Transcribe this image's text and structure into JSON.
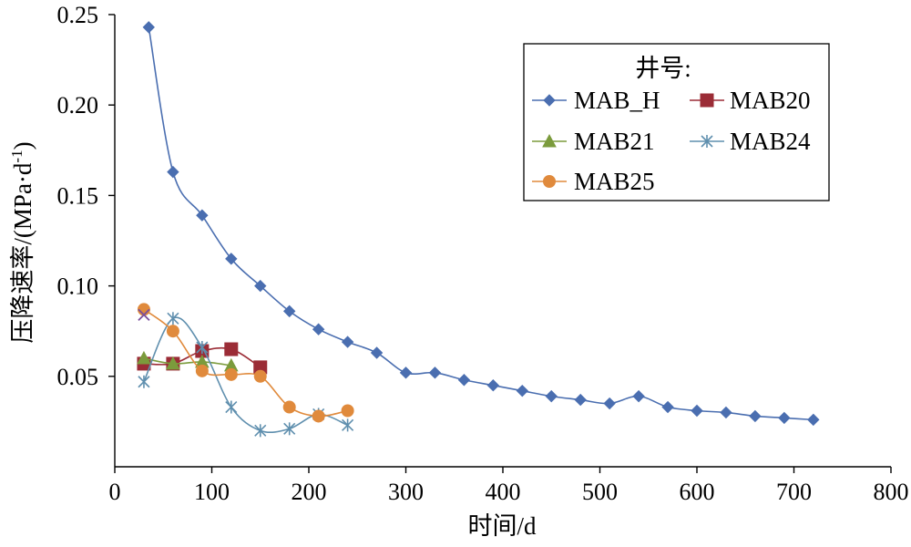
{
  "chart_data": {
    "type": "line",
    "title": "",
    "xlabel": "时间/d",
    "ylabel_main": "压降速率/(MPa·d",
    "ylabel_sup": "-1",
    "ylabel_tail": ")",
    "xlim": [
      0,
      800
    ],
    "ylim": [
      0,
      0.25
    ],
    "x_ticks": [
      0,
      100,
      200,
      300,
      400,
      500,
      600,
      700,
      800
    ],
    "x_tick_labels": [
      "0",
      "100",
      "200",
      "300",
      "400",
      "500",
      "600",
      "700",
      "800"
    ],
    "y_ticks": [
      0.05,
      0.1,
      0.15,
      0.2,
      0.25
    ],
    "y_tick_labels": [
      "0.05",
      "0.10",
      "0.15",
      "0.20",
      "0.25"
    ],
    "grid": false,
    "legend": {
      "title": "井号:",
      "position": "top-right"
    },
    "series": [
      {
        "name": "MAB_H",
        "marker": "diamond",
        "color": "#4a6eb0",
        "x": [
          35,
          60,
          90,
          120,
          150,
          180,
          210,
          240,
          270,
          300,
          330,
          360,
          390,
          420,
          450,
          480,
          510,
          540,
          570,
          600,
          630,
          660,
          690,
          720
        ],
        "y": [
          0.243,
          0.163,
          0.139,
          0.115,
          0.1,
          0.086,
          0.076,
          0.069,
          0.063,
          0.052,
          0.052,
          0.048,
          0.045,
          0.042,
          0.039,
          0.037,
          0.035,
          0.039,
          0.033,
          0.031,
          0.03,
          0.028,
          0.027,
          0.026
        ]
      },
      {
        "name": "MAB20",
        "marker": "square",
        "color": "#9b2c36",
        "x": [
          30,
          60,
          90,
          120,
          150
        ],
        "y": [
          0.057,
          0.057,
          0.064,
          0.065,
          0.055
        ]
      },
      {
        "name": "MAB21",
        "marker": "triangle",
        "color": "#7b9b3c",
        "x": [
          30,
          60,
          90,
          120
        ],
        "y": [
          0.06,
          0.057,
          0.058,
          0.056
        ]
      },
      {
        "name": "MAB24",
        "marker": "star",
        "color": "#5f8fae",
        "x": [
          30,
          60,
          90,
          120,
          150,
          180,
          210,
          240
        ],
        "y": [
          0.047,
          0.082,
          0.066,
          0.033,
          0.02,
          0.021,
          0.029,
          0.023
        ]
      },
      {
        "name": "MAB25",
        "marker": "circle",
        "color": "#e08a3c",
        "x": [
          30,
          60,
          90,
          120,
          150,
          180,
          210,
          240
        ],
        "y": [
          0.087,
          0.075,
          0.053,
          0.051,
          0.05,
          0.033,
          0.028,
          0.031
        ]
      },
      {
        "name": "",
        "marker": "x",
        "color": "#7a4f9c",
        "x": [
          30
        ],
        "y": [
          0.084
        ]
      }
    ]
  }
}
